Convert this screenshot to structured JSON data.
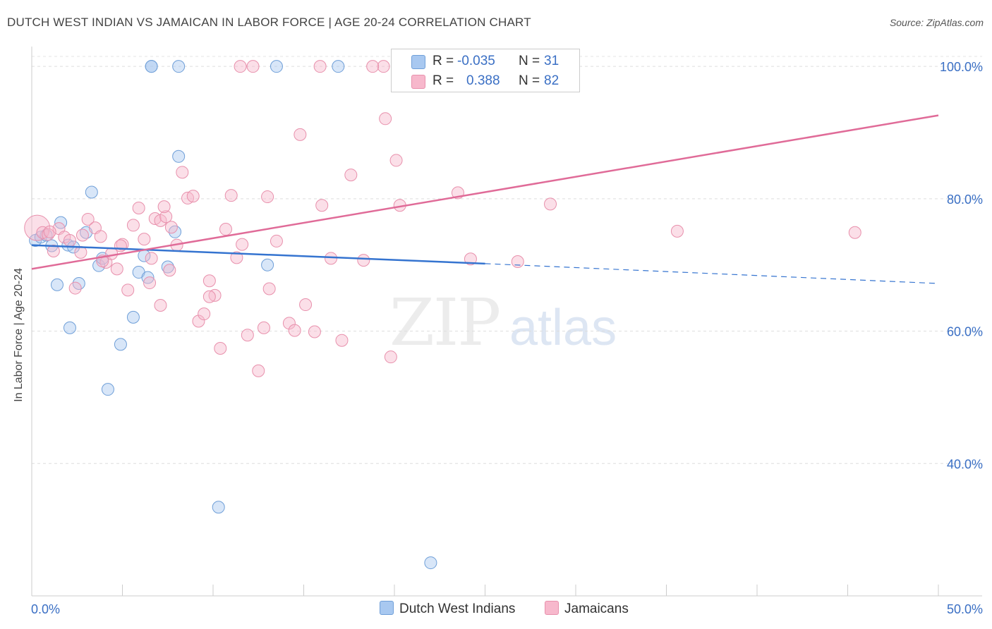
{
  "title": "DUTCH WEST INDIAN VS JAMAICAN IN LABOR FORCE | AGE 20-24 CORRELATION CHART",
  "source": "Source: ZipAtlas.com",
  "watermark": {
    "zip": "ZIP",
    "atlas": "atlas"
  },
  "legend": {
    "rows": [
      {
        "r_label": "R =",
        "r_value": "-0.035",
        "n_label": "N =",
        "n_value": "31",
        "color": "#a8c8f0"
      },
      {
        "r_label": "R =",
        "r_value": "0.388",
        "n_label": "N =",
        "n_value": "82",
        "color": "#f7b8cc"
      }
    ]
  },
  "bottom_legend": {
    "items": [
      "Dutch West Indians",
      "Jamaicans"
    ]
  },
  "chart_data": {
    "type": "scatter",
    "title": "DUTCH WEST INDIAN VS JAMAICAN IN LABOR FORCE | AGE 20-24 CORRELATION CHART",
    "xlabel": "",
    "ylabel": "In Labor Force | Age 20-24",
    "xlim": [
      0,
      50
    ],
    "ylim": [
      20,
      103
    ],
    "x_tick_labels": [
      "0.0%",
      "50.0%"
    ],
    "y_ticks": [
      40,
      60,
      80,
      100
    ],
    "y_tick_labels": [
      "40.0%",
      "60.0%",
      "80.0%",
      "100.0%"
    ],
    "grid": true,
    "legend_position": "top-center",
    "series": [
      {
        "name": "Dutch West Indians",
        "color": "#a8c8f0",
        "edge": "#6f9fd8",
        "line_color": "#3574d0",
        "trend": {
          "x": [
            0,
            25
          ],
          "y": [
            73.0,
            70.2
          ],
          "dashed_to": [
            50,
            67.2
          ]
        },
        "x": [
          0.2,
          0.5,
          0.8,
          1.1,
          1.4,
          1.6,
          2.0,
          2.1,
          2.3,
          2.6,
          3.0,
          3.3,
          3.7,
          3.9,
          4.2,
          4.9,
          5.6,
          5.9,
          6.2,
          6.4,
          6.6,
          7.5,
          7.9,
          8.1,
          10.3,
          13.0,
          13.5,
          16.9,
          22.0,
          6.6,
          8.1
        ],
        "y": [
          73.7,
          74.2,
          74.5,
          72.9,
          67.0,
          76.4,
          73.0,
          60.5,
          72.7,
          67.2,
          74.9,
          81.0,
          69.9,
          71.0,
          51.2,
          58.0,
          62.1,
          68.9,
          71.4,
          68.1,
          100.0,
          69.7,
          75.0,
          86.4,
          33.4,
          70.0,
          100.0,
          100.0,
          25.0,
          100.0,
          100.0
        ]
      },
      {
        "name": "Jamaicans",
        "color": "#f7b8cc",
        "edge": "#e890ac",
        "line_color": "#e06b98",
        "trend": {
          "x": [
            0,
            50
          ],
          "y": [
            69.4,
            92.6
          ]
        },
        "x": [
          0.3,
          0.6,
          0.9,
          1.2,
          1.5,
          1.8,
          2.1,
          2.4,
          2.7,
          3.1,
          3.5,
          3.8,
          4.1,
          4.4,
          4.7,
          5.0,
          5.3,
          5.6,
          5.9,
          6.2,
          6.5,
          6.8,
          7.1,
          7.4,
          7.7,
          8.0,
          8.3,
          8.6,
          8.9,
          9.2,
          9.5,
          9.8,
          10.1,
          10.4,
          10.7,
          11.0,
          11.3,
          11.6,
          11.9,
          12.2,
          12.5,
          12.8,
          13.1,
          13.5,
          14.2,
          14.5,
          14.8,
          15.1,
          15.6,
          16.0,
          16.5,
          17.1,
          17.6,
          18.3,
          19.4,
          19.5,
          19.8,
          20.1,
          20.3,
          20.6,
          21.7,
          22.0,
          23.0,
          23.5,
          24.2,
          26.8,
          28.6,
          35.6,
          45.4,
          13.0,
          1.0,
          2.8,
          3.9,
          4.9,
          6.6,
          7.1,
          7.6,
          9.8,
          11.5,
          15.9,
          18.8,
          7.3
        ],
        "y": [
          75.6,
          74.9,
          74.6,
          72.1,
          75.5,
          74.2,
          73.7,
          66.5,
          71.9,
          76.9,
          75.6,
          74.3,
          70.4,
          71.7,
          69.4,
          73.1,
          66.2,
          76.0,
          78.6,
          73.9,
          67.3,
          77.0,
          76.7,
          77.3,
          75.7,
          73.0,
          84.0,
          80.1,
          80.4,
          61.5,
          62.6,
          67.6,
          65.4,
          57.4,
          75.4,
          80.5,
          71.1,
          73.1,
          59.4,
          100.0,
          54.0,
          60.5,
          66.4,
          73.6,
          61.2,
          60.1,
          89.7,
          64.0,
          59.9,
          79.0,
          71.0,
          58.6,
          83.6,
          70.7,
          100.0,
          92.1,
          56.1,
          85.8,
          79.0,
          100.0,
          100.0,
          100.0,
          100.0,
          80.9,
          70.9,
          70.5,
          79.2,
          75.1,
          74.9,
          80.3,
          75.0,
          74.5,
          70.6,
          72.9,
          71.0,
          63.9,
          69.2,
          65.2,
          100.0,
          100.0,
          100.0,
          78.8
        ]
      }
    ]
  }
}
